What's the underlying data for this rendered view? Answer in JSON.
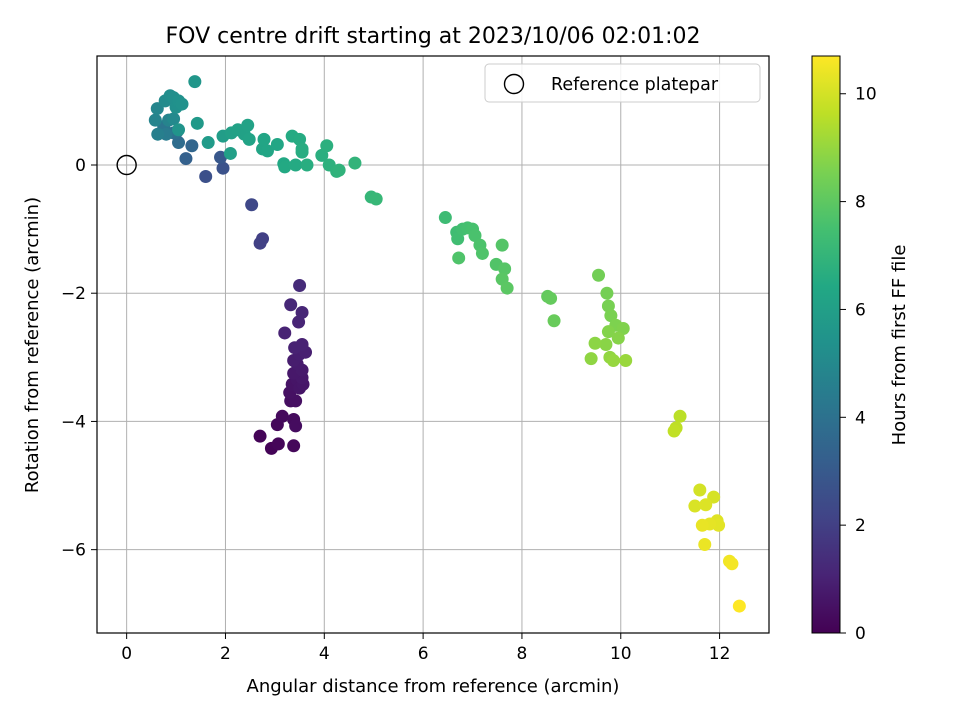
{
  "chart_data": {
    "type": "scatter",
    "title": "FOV centre drift starting at 2023/10/06 02:01:02",
    "xlabel": "Angular distance from reference (arcmin)",
    "ylabel": "Rotation from reference (arcmin)",
    "xlim": [
      -0.6,
      13.0
    ],
    "ylim": [
      -7.3,
      1.7
    ],
    "xticks": [
      0,
      2,
      4,
      6,
      8,
      10,
      12
    ],
    "yticks": [
      -6,
      -4,
      -2,
      0
    ],
    "grid": true,
    "legend": {
      "position": "top-right",
      "entries": [
        "Reference platepar"
      ]
    },
    "reference_point": {
      "x": 0,
      "y": 0,
      "label": "Reference platepar"
    },
    "colorbar": {
      "label": "Hours from first FF file",
      "min": 0,
      "max": 10.7,
      "ticks": [
        0,
        2,
        4,
        6,
        8,
        10
      ],
      "colormap": "viridis"
    },
    "points": [
      {
        "x": 2.7,
        "y": -4.23,
        "c": 0.1
      },
      {
        "x": 2.93,
        "y": -4.42,
        "c": 0.1
      },
      {
        "x": 3.07,
        "y": -4.35,
        "c": 0.15
      },
      {
        "x": 3.05,
        "y": -4.05,
        "c": 0.2
      },
      {
        "x": 3.15,
        "y": -3.92,
        "c": 0.25
      },
      {
        "x": 3.38,
        "y": -4.38,
        "c": 0.2
      },
      {
        "x": 3.38,
        "y": -3.97,
        "c": 0.3
      },
      {
        "x": 3.42,
        "y": -4.07,
        "c": 0.35
      },
      {
        "x": 3.32,
        "y": -3.68,
        "c": 0.4
      },
      {
        "x": 3.42,
        "y": -3.68,
        "c": 0.45
      },
      {
        "x": 3.3,
        "y": -3.55,
        "c": 0.5
      },
      {
        "x": 3.35,
        "y": -3.42,
        "c": 0.55
      },
      {
        "x": 3.45,
        "y": -3.35,
        "c": 0.6
      },
      {
        "x": 3.5,
        "y": -3.48,
        "c": 0.6
      },
      {
        "x": 3.57,
        "y": -3.42,
        "c": 0.65
      },
      {
        "x": 3.55,
        "y": -3.32,
        "c": 0.7
      },
      {
        "x": 3.38,
        "y": -3.25,
        "c": 0.7
      },
      {
        "x": 3.55,
        "y": -3.2,
        "c": 0.75
      },
      {
        "x": 3.45,
        "y": -3.1,
        "c": 0.8
      },
      {
        "x": 3.38,
        "y": -3.05,
        "c": 0.85
      },
      {
        "x": 3.5,
        "y": -2.95,
        "c": 0.9
      },
      {
        "x": 3.62,
        "y": -2.92,
        "c": 0.95
      },
      {
        "x": 3.4,
        "y": -2.85,
        "c": 1.0
      },
      {
        "x": 3.55,
        "y": -2.8,
        "c": 1.0
      },
      {
        "x": 3.2,
        "y": -2.62,
        "c": 1.05
      },
      {
        "x": 3.48,
        "y": -2.45,
        "c": 1.1
      },
      {
        "x": 3.55,
        "y": -2.3,
        "c": 1.15
      },
      {
        "x": 3.32,
        "y": -2.18,
        "c": 1.2
      },
      {
        "x": 3.5,
        "y": -1.88,
        "c": 1.3
      },
      {
        "x": 2.75,
        "y": -1.15,
        "c": 2.0
      },
      {
        "x": 2.7,
        "y": -1.22,
        "c": 2.05
      },
      {
        "x": 2.53,
        "y": -0.62,
        "c": 2.3
      },
      {
        "x": 1.6,
        "y": -0.18,
        "c": 2.6
      },
      {
        "x": 1.95,
        "y": -0.05,
        "c": 2.7
      },
      {
        "x": 1.9,
        "y": 0.12,
        "c": 2.9
      },
      {
        "x": 1.2,
        "y": 0.1,
        "c": 3.3
      },
      {
        "x": 1.32,
        "y": 0.3,
        "c": 3.5
      },
      {
        "x": 1.05,
        "y": 0.35,
        "c": 3.8
      },
      {
        "x": 0.95,
        "y": 0.5,
        "c": 3.9
      },
      {
        "x": 1.02,
        "y": 0.52,
        "c": 4.0
      },
      {
        "x": 0.75,
        "y": 0.6,
        "c": 4.2
      },
      {
        "x": 0.8,
        "y": 0.48,
        "c": 4.4
      },
      {
        "x": 0.63,
        "y": 0.48,
        "c": 4.6
      },
      {
        "x": 0.58,
        "y": 0.7,
        "c": 4.8
      },
      {
        "x": 0.85,
        "y": 0.7,
        "c": 4.8
      },
      {
        "x": 0.62,
        "y": 0.88,
        "c": 4.9
      },
      {
        "x": 0.95,
        "y": 0.72,
        "c": 5.0
      },
      {
        "x": 0.78,
        "y": 1.0,
        "c": 5.1
      },
      {
        "x": 0.88,
        "y": 1.08,
        "c": 5.2
      },
      {
        "x": 0.95,
        "y": 1.05,
        "c": 5.25
      },
      {
        "x": 1.0,
        "y": 0.9,
        "c": 5.3
      },
      {
        "x": 1.05,
        "y": 1.0,
        "c": 5.35
      },
      {
        "x": 1.12,
        "y": 0.95,
        "c": 5.4
      },
      {
        "x": 1.05,
        "y": 0.55,
        "c": 5.5
      },
      {
        "x": 1.38,
        "y": 1.3,
        "c": 5.6
      },
      {
        "x": 1.43,
        "y": 0.65,
        "c": 5.7
      },
      {
        "x": 1.65,
        "y": 0.35,
        "c": 5.8
      },
      {
        "x": 1.95,
        "y": 0.45,
        "c": 5.9
      },
      {
        "x": 2.1,
        "y": 0.18,
        "c": 6.0
      },
      {
        "x": 2.12,
        "y": 0.5,
        "c": 6.05
      },
      {
        "x": 2.25,
        "y": 0.55,
        "c": 6.1
      },
      {
        "x": 2.38,
        "y": 0.48,
        "c": 6.1
      },
      {
        "x": 2.45,
        "y": 0.62,
        "c": 6.15
      },
      {
        "x": 2.48,
        "y": 0.4,
        "c": 6.2
      },
      {
        "x": 2.75,
        "y": 0.25,
        "c": 6.25
      },
      {
        "x": 2.85,
        "y": 0.22,
        "c": 6.3
      },
      {
        "x": 2.78,
        "y": 0.4,
        "c": 6.3
      },
      {
        "x": 3.05,
        "y": 0.32,
        "c": 6.35
      },
      {
        "x": 3.18,
        "y": 0.02,
        "c": 6.4
      },
      {
        "x": 3.2,
        "y": -0.03,
        "c": 6.45
      },
      {
        "x": 3.35,
        "y": 0.45,
        "c": 6.5
      },
      {
        "x": 3.42,
        "y": 0.0,
        "c": 6.5
      },
      {
        "x": 3.5,
        "y": 0.4,
        "c": 6.55
      },
      {
        "x": 3.55,
        "y": 0.25,
        "c": 6.6
      },
      {
        "x": 3.55,
        "y": 0.2,
        "c": 6.6
      },
      {
        "x": 3.65,
        "y": 0.0,
        "c": 6.65
      },
      {
        "x": 3.95,
        "y": 0.15,
        "c": 6.7
      },
      {
        "x": 4.05,
        "y": 0.3,
        "c": 6.75
      },
      {
        "x": 4.1,
        "y": 0.0,
        "c": 6.8
      },
      {
        "x": 4.25,
        "y": -0.1,
        "c": 6.85
      },
      {
        "x": 4.3,
        "y": -0.08,
        "c": 6.9
      },
      {
        "x": 4.62,
        "y": 0.03,
        "c": 6.95
      },
      {
        "x": 4.95,
        "y": -0.5,
        "c": 7.05
      },
      {
        "x": 5.05,
        "y": -0.53,
        "c": 7.1
      },
      {
        "x": 6.45,
        "y": -0.82,
        "c": 7.3
      },
      {
        "x": 6.68,
        "y": -1.05,
        "c": 7.35
      },
      {
        "x": 6.7,
        "y": -1.15,
        "c": 7.4
      },
      {
        "x": 6.8,
        "y": -1.0,
        "c": 7.45
      },
      {
        "x": 6.9,
        "y": -0.98,
        "c": 7.5
      },
      {
        "x": 7.0,
        "y": -1.0,
        "c": 7.55
      },
      {
        "x": 7.05,
        "y": -1.1,
        "c": 7.6
      },
      {
        "x": 7.15,
        "y": -1.25,
        "c": 7.65
      },
      {
        "x": 7.2,
        "y": -1.38,
        "c": 7.7
      },
      {
        "x": 6.72,
        "y": -1.45,
        "c": 7.7
      },
      {
        "x": 7.48,
        "y": -1.55,
        "c": 7.75
      },
      {
        "x": 7.6,
        "y": -1.25,
        "c": 7.8
      },
      {
        "x": 7.65,
        "y": -1.62,
        "c": 7.85
      },
      {
        "x": 7.6,
        "y": -1.78,
        "c": 7.9
      },
      {
        "x": 7.7,
        "y": -1.92,
        "c": 7.95
      },
      {
        "x": 8.52,
        "y": -2.05,
        "c": 8.1
      },
      {
        "x": 8.58,
        "y": -2.08,
        "c": 8.15
      },
      {
        "x": 8.65,
        "y": -2.43,
        "c": 8.2
      },
      {
        "x": 9.55,
        "y": -1.72,
        "c": 8.4
      },
      {
        "x": 9.72,
        "y": -2.0,
        "c": 8.45
      },
      {
        "x": 9.75,
        "y": -2.2,
        "c": 8.5
      },
      {
        "x": 9.8,
        "y": -2.35,
        "c": 8.55
      },
      {
        "x": 9.9,
        "y": -2.5,
        "c": 8.6
      },
      {
        "x": 10.05,
        "y": -2.55,
        "c": 8.65
      },
      {
        "x": 9.75,
        "y": -2.6,
        "c": 8.7
      },
      {
        "x": 9.95,
        "y": -2.7,
        "c": 8.75
      },
      {
        "x": 9.7,
        "y": -2.8,
        "c": 8.8
      },
      {
        "x": 9.48,
        "y": -2.78,
        "c": 8.85
      },
      {
        "x": 9.4,
        "y": -3.02,
        "c": 8.9
      },
      {
        "x": 9.78,
        "y": -3.0,
        "c": 8.95
      },
      {
        "x": 9.85,
        "y": -3.05,
        "c": 9.0
      },
      {
        "x": 10.1,
        "y": -3.05,
        "c": 9.05
      },
      {
        "x": 11.2,
        "y": -3.92,
        "c": 9.6
      },
      {
        "x": 11.12,
        "y": -4.1,
        "c": 9.65
      },
      {
        "x": 11.08,
        "y": -4.15,
        "c": 9.7
      },
      {
        "x": 11.6,
        "y": -5.07,
        "c": 10.0
      },
      {
        "x": 11.88,
        "y": -5.18,
        "c": 10.05
      },
      {
        "x": 11.5,
        "y": -5.32,
        "c": 10.1
      },
      {
        "x": 11.72,
        "y": -5.3,
        "c": 10.15
      },
      {
        "x": 11.95,
        "y": -5.55,
        "c": 10.2
      },
      {
        "x": 11.98,
        "y": -5.62,
        "c": 10.25
      },
      {
        "x": 11.8,
        "y": -5.6,
        "c": 10.3
      },
      {
        "x": 11.65,
        "y": -5.62,
        "c": 10.35
      },
      {
        "x": 11.7,
        "y": -5.92,
        "c": 10.4
      },
      {
        "x": 12.2,
        "y": -6.18,
        "c": 10.5
      },
      {
        "x": 12.25,
        "y": -6.22,
        "c": 10.55
      },
      {
        "x": 12.4,
        "y": -6.88,
        "c": 10.7
      }
    ]
  }
}
